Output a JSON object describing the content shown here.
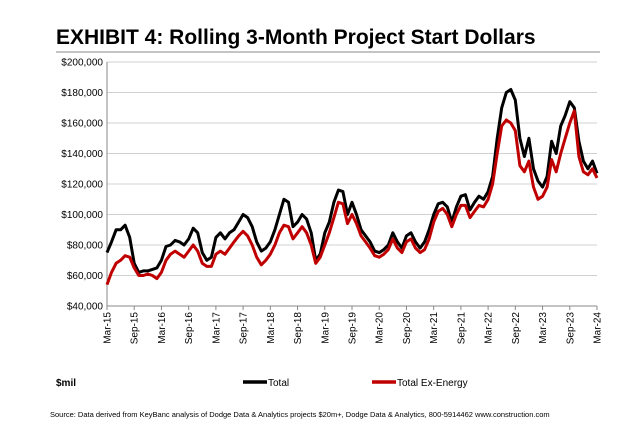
{
  "chart_data": {
    "type": "line",
    "title": "EXHIBIT 4: Rolling 3-Month Project Start Dollars",
    "unit_label": "$mil",
    "source": "Source: Data derived from KeyBanc analysis of Dodge Data & Analytics projects $20m+, Dodge Data & Analytics, 800-5914462 www.construction.com",
    "categories": [
      "Mar-15",
      null,
      null,
      null,
      null,
      null,
      "Sep-15",
      null,
      null,
      null,
      null,
      null,
      "Mar-16",
      null,
      null,
      null,
      null,
      null,
      "Sep-16",
      null,
      null,
      null,
      null,
      null,
      "Mar-17",
      null,
      null,
      null,
      null,
      null,
      "Sep-17",
      null,
      null,
      null,
      null,
      null,
      "Mar-18",
      null,
      null,
      null,
      null,
      null,
      "Sep-18",
      null,
      null,
      null,
      null,
      null,
      "Mar-19",
      null,
      null,
      null,
      null,
      null,
      "Sep-19",
      null,
      null,
      null,
      null,
      null,
      "Mar-20",
      null,
      null,
      null,
      null,
      null,
      "Sep-20",
      null,
      null,
      null,
      null,
      null,
      "Mar-21",
      null,
      null,
      null,
      null,
      null,
      "Sep-21",
      null,
      null,
      null,
      null,
      null,
      "Mar-22",
      null,
      null,
      null,
      null,
      null,
      "Sep-22",
      null,
      null,
      null,
      null,
      null,
      "Mar-23",
      null,
      null,
      null,
      null,
      null,
      "Sep-23",
      null,
      null,
      null,
      null,
      null,
      "Mar-24"
    ],
    "series": [
      {
        "name": "Total",
        "color": "#000000",
        "values": [
          75000,
          82000,
          90000,
          90000,
          93000,
          85000,
          68000,
          62000,
          63000,
          63000,
          64000,
          65000,
          70000,
          79000,
          80000,
          83000,
          82000,
          80000,
          84000,
          91000,
          88000,
          75000,
          70000,
          72000,
          85000,
          88000,
          84000,
          88000,
          90000,
          95000,
          100000,
          98000,
          92000,
          82000,
          76000,
          78000,
          82000,
          90000,
          100000,
          110000,
          108000,
          92000,
          95000,
          100000,
          97000,
          88000,
          70000,
          74000,
          88000,
          95000,
          108000,
          116000,
          115000,
          100000,
          108000,
          100000,
          90000,
          86000,
          82000,
          76000,
          75000,
          77000,
          80000,
          88000,
          82000,
          78000,
          86000,
          88000,
          82000,
          78000,
          82000,
          90000,
          100000,
          107000,
          108000,
          105000,
          95000,
          105000,
          112000,
          113000,
          103000,
          108000,
          112000,
          110000,
          115000,
          125000,
          150000,
          170000,
          180000,
          182000,
          175000,
          150000,
          138000,
          150000,
          130000,
          122000,
          118000,
          125000,
          148000,
          140000,
          158000,
          165000,
          174000,
          170000,
          148000,
          135000,
          130000,
          135000,
          127000
        ]
      },
      {
        "name": "Total Ex-Energy",
        "color": "#c00000",
        "values": [
          54000,
          62000,
          68000,
          70000,
          73000,
          72000,
          65000,
          60000,
          60000,
          61000,
          60000,
          58000,
          62000,
          70000,
          74000,
          76000,
          74000,
          72000,
          76000,
          80000,
          76000,
          68000,
          66000,
          66000,
          74000,
          76000,
          74000,
          78000,
          82000,
          86000,
          89000,
          86000,
          80000,
          72000,
          67000,
          70000,
          74000,
          80000,
          88000,
          93000,
          92000,
          84000,
          88000,
          92000,
          88000,
          80000,
          68000,
          72000,
          80000,
          88000,
          98000,
          108000,
          107000,
          94000,
          100000,
          94000,
          86000,
          82000,
          78000,
          73000,
          72000,
          74000,
          77000,
          84000,
          78000,
          75000,
          82000,
          84000,
          78000,
          75000,
          77000,
          84000,
          95000,
          102000,
          104000,
          100000,
          92000,
          100000,
          106000,
          106000,
          98000,
          102000,
          106000,
          105000,
          110000,
          120000,
          140000,
          158000,
          162000,
          160000,
          155000,
          132000,
          128000,
          135000,
          118000,
          110000,
          112000,
          118000,
          136000,
          128000,
          140000,
          150000,
          160000,
          168000,
          138000,
          128000,
          126000,
          130000,
          124000
        ]
      }
    ],
    "ylim": [
      40000,
      200000
    ],
    "yticks": [
      {
        "value": 40000,
        "label": "$40,000"
      },
      {
        "value": 60000,
        "label": "$60,000"
      },
      {
        "value": 80000,
        "label": "$80,000"
      },
      {
        "value": 100000,
        "label": "$100,000"
      },
      {
        "value": 120000,
        "label": "$120,000"
      },
      {
        "value": 140000,
        "label": "$140,000"
      },
      {
        "value": 160000,
        "label": "$160,000"
      },
      {
        "value": 180000,
        "label": "$180,000"
      },
      {
        "value": 200000,
        "label": "$200,000"
      }
    ],
    "grid": true
  }
}
